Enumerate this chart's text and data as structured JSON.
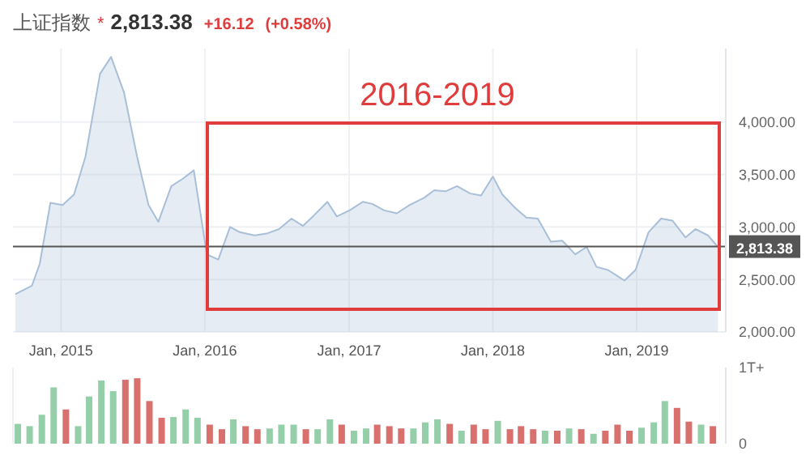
{
  "chart_data": [
    {
      "type": "area",
      "title": "上证指数",
      "annotations": [
        "*",
        "2,813.38",
        "+16.12",
        "(+0.58%)",
        "2016-2019"
      ],
      "x": [
        "2014-09-07",
        "2014-10-19",
        "2014-11-08",
        "2014-12-05",
        "2015-01-05",
        "2015-02-03",
        "2015-03-04",
        "2015-04-10",
        "2015-05-08",
        "2015-06-10",
        "2015-07-13",
        "2015-08-11",
        "2015-09-05",
        "2015-10-08",
        "2015-11-06",
        "2015-12-04",
        "2016-01-06",
        "2016-02-04",
        "2016-03-05",
        "2016-03-30",
        "2016-05-06",
        "2016-06-08",
        "2016-07-07",
        "2016-08-08",
        "2016-09-06",
        "2016-10-01",
        "2016-11-07",
        "2016-12-01",
        "2017-01-03",
        "2017-02-05",
        "2017-03-01",
        "2017-03-30",
        "2017-05-02",
        "2017-06-04",
        "2017-07-11",
        "2017-08-05",
        "2017-09-03",
        "2017-10-02",
        "2017-11-04",
        "2017-12-02",
        "2018-01-01",
        "2018-01-25",
        "2018-02-27",
        "2018-03-27",
        "2018-04-25",
        "2018-05-28",
        "2018-06-26",
        "2018-07-29",
        "2018-08-27",
        "2018-09-21",
        "2018-10-20",
        "2018-12-01",
        "2018-12-29",
        "2019-01-31",
        "2019-03-04",
        "2019-04-02",
        "2019-05-05",
        "2019-05-30",
        "2019-07-01",
        "2019-07-26"
      ],
      "series": [
        {
          "color": "#a9bfd8",
          "values": [
            2360,
            2440,
            2650,
            3230,
            3210,
            3310,
            3670,
            4460,
            4620,
            4280,
            3670,
            3210,
            3050,
            3390,
            3460,
            3540,
            2740,
            2690,
            3000,
            2950,
            2920,
            2940,
            2980,
            3080,
            3010,
            3100,
            3240,
            3100,
            3160,
            3240,
            3220,
            3160,
            3130,
            3210,
            3280,
            3350,
            3340,
            3390,
            3320,
            3300,
            3480,
            3310,
            3180,
            3090,
            3080,
            2860,
            2870,
            2740,
            2810,
            2620,
            2590,
            2490,
            2590,
            2950,
            3080,
            3060,
            2900,
            2980,
            2920,
            2810
          ]
        }
      ],
      "xlim": [
        "2014-09-01",
        "2019-08-15"
      ],
      "xticks": [
        {
          "value": "2015-01-01",
          "label": "Jan, 2015"
        },
        {
          "value": "2016-01-01",
          "label": "Jan, 2016"
        },
        {
          "value": "2017-01-01",
          "label": "Jan, 2017"
        },
        {
          "value": "2018-01-01",
          "label": "Jan, 2018"
        },
        {
          "value": "2019-01-01",
          "label": "Jan, 2019"
        }
      ],
      "ylim": [
        2000,
        4700
      ],
      "yticks": [
        {
          "value": 2000,
          "label": "2,000.00"
        },
        {
          "value": 2500,
          "label": "2,500.00"
        },
        {
          "value": 3000,
          "label": "3,000.00"
        },
        {
          "value": 3500,
          "label": "3,500.00"
        },
        {
          "value": 4000,
          "label": "4,000.00"
        }
      ],
      "ref_lines": [
        {
          "axis": "y",
          "value": 2813.38,
          "label": "2,813.38",
          "color": "#555555"
        }
      ],
      "grid": true
    },
    {
      "type": "bar",
      "x": [
        "2014-09-15",
        "2014-10-15",
        "2014-11-15",
        "2014-12-15",
        "2015-01-15",
        "2015-02-15",
        "2015-03-15",
        "2015-04-15",
        "2015-05-15",
        "2015-06-15",
        "2015-07-15",
        "2015-08-15",
        "2015-09-15",
        "2015-10-15",
        "2015-11-15",
        "2015-12-15",
        "2016-01-15",
        "2016-02-15",
        "2016-03-15",
        "2016-04-15",
        "2016-05-15",
        "2016-06-15",
        "2016-07-15",
        "2016-08-15",
        "2016-09-15",
        "2016-10-15",
        "2016-11-15",
        "2016-12-15",
        "2017-01-15",
        "2017-02-15",
        "2017-03-15",
        "2017-04-15",
        "2017-05-15",
        "2017-06-15",
        "2017-07-15",
        "2017-08-15",
        "2017-09-15",
        "2017-10-15",
        "2017-11-15",
        "2017-12-15",
        "2018-01-15",
        "2018-02-15",
        "2018-03-15",
        "2018-04-15",
        "2018-05-15",
        "2018-06-15",
        "2018-07-15",
        "2018-08-15",
        "2018-09-15",
        "2018-10-15",
        "2018-11-15",
        "2018-12-15",
        "2019-01-15",
        "2019-02-15",
        "2019-03-15",
        "2019-04-15",
        "2019-05-15",
        "2019-06-15",
        "2019-07-15"
      ],
      "values": [
        0.26,
        0.23,
        0.38,
        0.74,
        0.45,
        0.23,
        0.62,
        0.83,
        0.69,
        0.84,
        0.86,
        0.56,
        0.34,
        0.35,
        0.45,
        0.34,
        0.25,
        0.19,
        0.32,
        0.23,
        0.19,
        0.2,
        0.25,
        0.25,
        0.19,
        0.19,
        0.32,
        0.25,
        0.17,
        0.2,
        0.25,
        0.23,
        0.2,
        0.2,
        0.28,
        0.32,
        0.26,
        0.17,
        0.25,
        0.19,
        0.3,
        0.19,
        0.23,
        0.19,
        0.17,
        0.17,
        0.2,
        0.19,
        0.13,
        0.17,
        0.25,
        0.17,
        0.21,
        0.28,
        0.56,
        0.47,
        0.29,
        0.25,
        0.23
      ],
      "colors": [
        "#94cfa9",
        "#94cfa9",
        "#94cfa9",
        "#94cfa9",
        "#d8706e",
        "#94cfa9",
        "#94cfa9",
        "#94cfa9",
        "#94cfa9",
        "#d8706e",
        "#d8706e",
        "#d8706e",
        "#d8706e",
        "#94cfa9",
        "#94cfa9",
        "#94cfa9",
        "#d8706e",
        "#d8706e",
        "#94cfa9",
        "#d8706e",
        "#d8706e",
        "#94cfa9",
        "#94cfa9",
        "#94cfa9",
        "#d8706e",
        "#94cfa9",
        "#94cfa9",
        "#d8706e",
        "#94cfa9",
        "#94cfa9",
        "#d8706e",
        "#d8706e",
        "#d8706e",
        "#94cfa9",
        "#94cfa9",
        "#94cfa9",
        "#d8706e",
        "#94cfa9",
        "#d8706e",
        "#d8706e",
        "#94cfa9",
        "#d8706e",
        "#d8706e",
        "#d8706e",
        "#94cfa9",
        "#d8706e",
        "#94cfa9",
        "#d8706e",
        "#94cfa9",
        "#d8706e",
        "#d8706e",
        "#d8706e",
        "#94cfa9",
        "#94cfa9",
        "#94cfa9",
        "#d8706e",
        "#d8706e",
        "#94cfa9",
        "#d8706e"
      ],
      "xlim": [
        "2014-09-01",
        "2019-08-15"
      ],
      "ylim": [
        0,
        1
      ],
      "yticks": [
        0,
        {
          "value": 1,
          "label": "1T+"
        }
      ],
      "tick_labels": "y",
      "grid": "x"
    }
  ]
}
